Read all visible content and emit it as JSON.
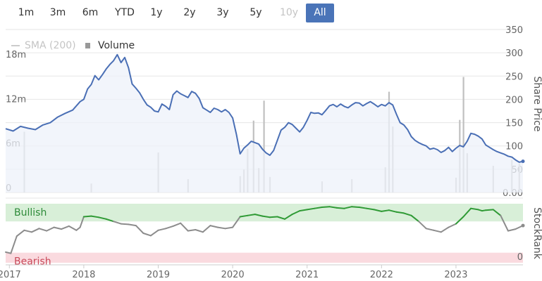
{
  "range_selector": {
    "buttons": [
      {
        "label": "1m",
        "state": "normal"
      },
      {
        "label": "3m",
        "state": "normal"
      },
      {
        "label": "6m",
        "state": "normal"
      },
      {
        "label": "YTD",
        "state": "normal"
      },
      {
        "label": "1y",
        "state": "normal"
      },
      {
        "label": "2y",
        "state": "normal"
      },
      {
        "label": "3y",
        "state": "normal"
      },
      {
        "label": "5y",
        "state": "normal"
      },
      {
        "label": "10y",
        "state": "disabled"
      },
      {
        "label": "All",
        "state": "active"
      }
    ],
    "active_color": "#4a74b8"
  },
  "chart_data": [
    {
      "type": "line",
      "title": "",
      "legend": {
        "placement": "top-left",
        "items": [
          {
            "label": "SMA (200)",
            "enabled": false
          },
          {
            "label": "Volume",
            "enabled": true
          }
        ]
      },
      "x_ticks": [
        "2017",
        "2018",
        "2019",
        "2020",
        "2021",
        "2022",
        "2023"
      ],
      "xlim": [
        2016.95,
        2023.9
      ],
      "y_right": {
        "label": "Share Price",
        "ticks": [
          "350",
          "300",
          "250",
          "200",
          "150",
          "100",
          "50",
          "0.00"
        ],
        "ylim": [
          0,
          350
        ]
      },
      "y_left": {
        "label": "",
        "ticks": [
          "18m",
          "12m",
          "6m",
          "0"
        ],
        "ylim": [
          0,
          22
        ]
      },
      "series": [
        {
          "kind": "price",
          "color": "#4a6fb5",
          "fill": "#eef2fa",
          "x": [
            2016.95,
            2017.05,
            2017.15,
            2017.25,
            2017.35,
            2017.45,
            2017.55,
            2017.65,
            2017.75,
            2017.85,
            2017.95,
            2018.0,
            2018.05,
            2018.1,
            2018.15,
            2018.2,
            2018.25,
            2018.3,
            2018.35,
            2018.4,
            2018.45,
            2018.5,
            2018.55,
            2018.6,
            2018.65,
            2018.7,
            2018.75,
            2018.8,
            2018.85,
            2018.9,
            2018.95,
            2019.0,
            2019.05,
            2019.1,
            2019.15,
            2019.2,
            2019.25,
            2019.3,
            2019.35,
            2019.4,
            2019.45,
            2019.5,
            2019.55,
            2019.6,
            2019.65,
            2019.7,
            2019.75,
            2019.8,
            2019.85,
            2019.9,
            2019.95,
            2020.0,
            2020.05,
            2020.1,
            2020.15,
            2020.2,
            2020.25,
            2020.3,
            2020.35,
            2020.4,
            2020.45,
            2020.5,
            2020.55,
            2020.6,
            2020.65,
            2020.7,
            2020.75,
            2020.8,
            2020.85,
            2020.9,
            2020.95,
            2021.0,
            2021.05,
            2021.1,
            2021.15,
            2021.2,
            2021.25,
            2021.3,
            2021.35,
            2021.4,
            2021.45,
            2021.5,
            2021.55,
            2021.6,
            2021.65,
            2021.7,
            2021.75,
            2021.8,
            2021.85,
            2021.9,
            2021.95,
            2022.0,
            2022.05,
            2022.1,
            2022.15,
            2022.2,
            2022.25,
            2022.3,
            2022.35,
            2022.4,
            2022.45,
            2022.5,
            2022.55,
            2022.6,
            2022.65,
            2022.7,
            2022.75,
            2022.8,
            2022.85,
            2022.9,
            2022.95,
            2023.0,
            2023.05,
            2023.1,
            2023.15,
            2023.2,
            2023.25,
            2023.3,
            2023.35,
            2023.4,
            2023.45,
            2023.5,
            2023.55,
            2023.6,
            2023.65,
            2023.7,
            2023.75,
            2023.8,
            2023.85,
            2023.9
          ],
          "y": [
            137,
            132,
            142,
            138,
            135,
            145,
            150,
            162,
            170,
            177,
            195,
            200,
            222,
            232,
            251,
            242,
            253,
            265,
            275,
            283,
            296,
            279,
            290,
            268,
            233,
            224,
            214,
            200,
            188,
            183,
            175,
            173,
            190,
            185,
            178,
            210,
            218,
            212,
            208,
            204,
            217,
            213,
            202,
            182,
            177,
            172,
            181,
            178,
            173,
            178,
            172,
            160,
            125,
            83,
            95,
            102,
            110,
            107,
            104,
            93,
            85,
            80,
            90,
            112,
            134,
            140,
            150,
            146,
            138,
            130,
            140,
            155,
            172,
            170,
            171,
            167,
            176,
            186,
            189,
            184,
            190,
            185,
            182,
            188,
            193,
            192,
            186,
            191,
            195,
            190,
            184,
            189,
            186,
            193,
            188,
            168,
            150,
            145,
            135,
            120,
            112,
            107,
            103,
            100,
            93,
            95,
            92,
            86,
            90,
            97,
            88,
            95,
            101,
            98,
            110,
            127,
            125,
            121,
            115,
            102,
            97,
            92,
            88,
            85,
            82,
            78,
            76,
            70,
            65,
            67
          ]
        },
        {
          "kind": "volume",
          "color": "#c0c0c0",
          "x": [
            2017.2,
            2018.1,
            2019.0,
            2019.4,
            2020.1,
            2020.15,
            2020.2,
            2020.28,
            2020.35,
            2020.42,
            2020.5,
            2021.2,
            2021.6,
            2022.05,
            2022.1,
            2022.15,
            2023.0,
            2023.05,
            2023.1,
            2023.15,
            2023.5,
            2023.75,
            2023.85
          ],
          "y": [
            8.2,
            1.2,
            5.4,
            1.8,
            2.2,
            3.1,
            5.9,
            9.7,
            3.3,
            12.4,
            2.1,
            1.5,
            1.8,
            3.4,
            13.6,
            8.9,
            2.0,
            9.8,
            15.6,
            5.3,
            3.6,
            4.4,
            3.9
          ]
        }
      ]
    },
    {
      "type": "line",
      "title": "",
      "x_ticks": [
        "2017",
        "2018",
        "2019",
        "2020",
        "2021",
        "2022",
        "2023"
      ],
      "xlim": [
        2016.95,
        2023.9
      ],
      "y_right": {
        "label": "StockRank",
        "ticks": [
          "0"
        ],
        "ylim": [
          0,
          100
        ]
      },
      "bands": [
        {
          "label": "Bullish",
          "from": 70,
          "to": 100,
          "color": "#d8efd8",
          "text_color": "#2e8b3a"
        },
        {
          "label": "Bearish",
          "from": 0,
          "to": 17,
          "color": "#fadadf",
          "text_color": "#c94a5a"
        }
      ],
      "series": [
        {
          "kind": "stockrank",
          "color_above": "#2f9a35",
          "color_below": "#8c8c8c",
          "threshold": 70,
          "x": [
            2016.95,
            2017.02,
            2017.1,
            2017.2,
            2017.3,
            2017.4,
            2017.5,
            2017.6,
            2017.7,
            2017.8,
            2017.9,
            2017.95,
            2018.0,
            2018.1,
            2018.2,
            2018.3,
            2018.4,
            2018.5,
            2018.6,
            2018.7,
            2018.8,
            2018.9,
            2019.0,
            2019.1,
            2019.2,
            2019.3,
            2019.4,
            2019.5,
            2019.6,
            2019.7,
            2019.8,
            2019.9,
            2020.0,
            2020.1,
            2020.2,
            2020.3,
            2020.4,
            2020.5,
            2020.6,
            2020.7,
            2020.8,
            2020.9,
            2021.0,
            2021.1,
            2021.2,
            2021.3,
            2021.4,
            2021.5,
            2021.6,
            2021.7,
            2021.8,
            2021.9,
            2022.0,
            2022.1,
            2022.2,
            2022.3,
            2022.4,
            2022.5,
            2022.6,
            2022.7,
            2022.8,
            2022.9,
            2023.0,
            2023.1,
            2023.2,
            2023.3,
            2023.35,
            2023.4,
            2023.5,
            2023.6,
            2023.7,
            2023.8,
            2023.9
          ],
          "y": [
            18,
            16,
            45,
            55,
            52,
            58,
            54,
            60,
            57,
            62,
            55,
            60,
            78,
            79,
            77,
            74,
            70,
            66,
            65,
            63,
            50,
            46,
            55,
            58,
            62,
            67,
            54,
            56,
            52,
            63,
            60,
            58,
            60,
            78,
            80,
            82,
            79,
            77,
            78,
            74,
            82,
            88,
            90,
            92,
            94,
            95,
            93,
            92,
            95,
            94,
            92,
            90,
            87,
            89,
            86,
            84,
            80,
            70,
            58,
            55,
            52,
            60,
            66,
            78,
            92,
            90,
            88,
            89,
            90,
            80,
            54,
            57,
            63
          ]
        }
      ]
    }
  ]
}
